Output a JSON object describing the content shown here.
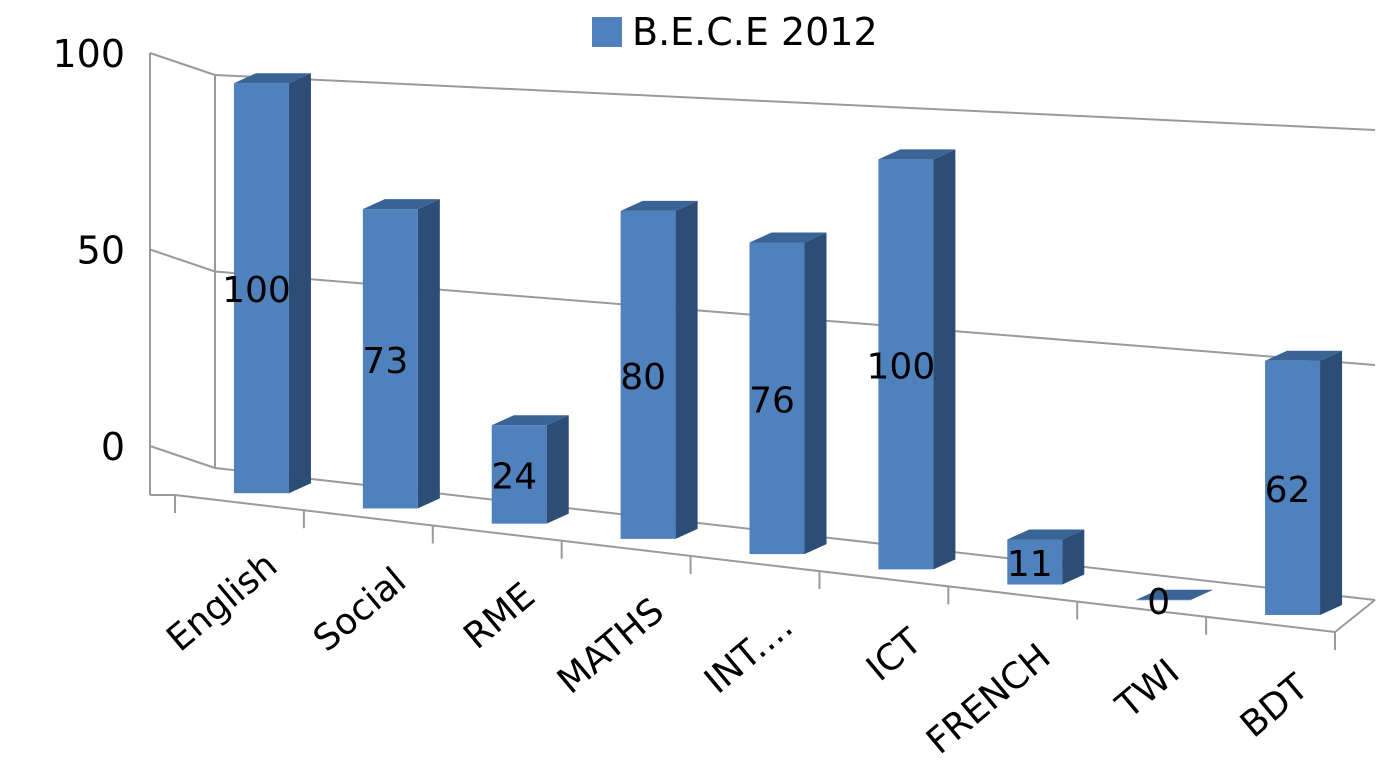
{
  "chart_data": {
    "type": "bar",
    "categories": [
      "English",
      "Social",
      "RME",
      "MATHS",
      "INT....",
      "ICT",
      "FRENCH",
      "TWI",
      "BDT"
    ],
    "series": [
      {
        "name": "B.E.C.E 2012",
        "values": [
          100,
          73,
          24,
          80,
          76,
          100,
          11,
          0,
          62
        ]
      }
    ],
    "ylim": [
      0,
      100
    ],
    "yticks": [
      0,
      50,
      100
    ],
    "grid": true,
    "legend_position": "top",
    "bar_color": "#4f81bd"
  }
}
